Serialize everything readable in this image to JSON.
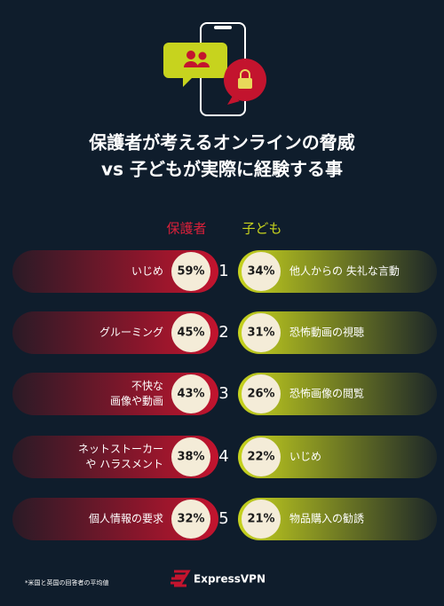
{
  "title": [
    "保護者が考えるオンラインの脅威",
    "vs 子どもが実際に経験する事"
  ],
  "headers": {
    "parents": "保護者",
    "children": "子ども"
  },
  "rows": [
    {
      "rank": 1,
      "parent_label": [
        "いじめ"
      ],
      "parent_value": "59%",
      "child_label": [
        "他人からの 失礼な言動"
      ],
      "child_value": "34%"
    },
    {
      "rank": 2,
      "parent_label": [
        "グルーミング"
      ],
      "parent_value": "45%",
      "child_label": [
        "恐怖動画の視聴"
      ],
      "child_value": "31%"
    },
    {
      "rank": 3,
      "parent_label": [
        "不快な",
        "画像や動画"
      ],
      "parent_value": "43%",
      "child_label": [
        "恐怖画像の閲覧"
      ],
      "child_value": "26%"
    },
    {
      "rank": 4,
      "parent_label": [
        "ネットストーカー",
        "や ハラスメント"
      ],
      "parent_value": "38%",
      "child_label": [
        "いじめ"
      ],
      "child_value": "22%"
    },
    {
      "rank": 5,
      "parent_label": [
        "個人情報の要求"
      ],
      "parent_value": "32%",
      "child_label": [
        "物品購入の勧誘"
      ],
      "child_value": "21%"
    }
  ],
  "footnote": "*米国と英国の回答者の平均値",
  "brand": "ExpressVPN"
}
